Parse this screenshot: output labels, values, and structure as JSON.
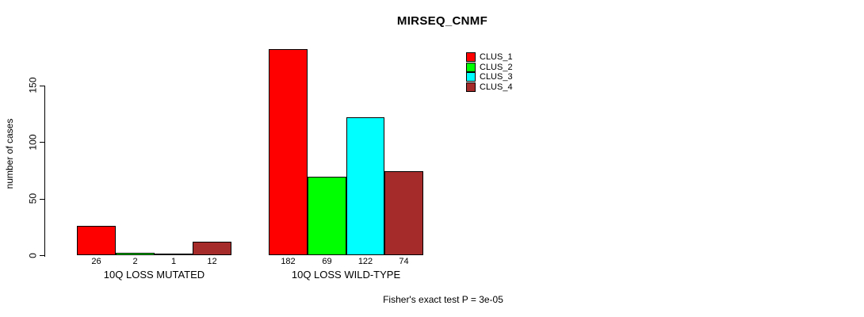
{
  "chart_data": {
    "type": "bar",
    "title": "MIRSEQ_CNMF",
    "ylabel": "number of cases",
    "xlabel": "",
    "ylim": [
      0,
      150
    ],
    "yticks": [
      0,
      50,
      100,
      150
    ],
    "grid": false,
    "legend_position": "top-right",
    "categories": [
      "10Q LOSS MUTATED",
      "10Q LOSS WILD-TYPE"
    ],
    "series": [
      {
        "name": "CLUS_1",
        "color": "#FF0000",
        "values": [
          26,
          182
        ]
      },
      {
        "name": "CLUS_2",
        "color": "#00FF00",
        "values": [
          2,
          69
        ]
      },
      {
        "name": "CLUS_3",
        "color": "#00FFFF",
        "values": [
          1,
          122
        ]
      },
      {
        "name": "CLUS_4",
        "color": "#A52A2A",
        "values": [
          12,
          74
        ]
      }
    ],
    "bar_value_labels": {
      "10Q LOSS MUTATED": [
        26,
        2,
        1,
        12
      ],
      "10Q LOSS WILD-TYPE": [
        182,
        69,
        122,
        74
      ]
    },
    "annotation": "Fisher's exact test P = 3e-05"
  }
}
